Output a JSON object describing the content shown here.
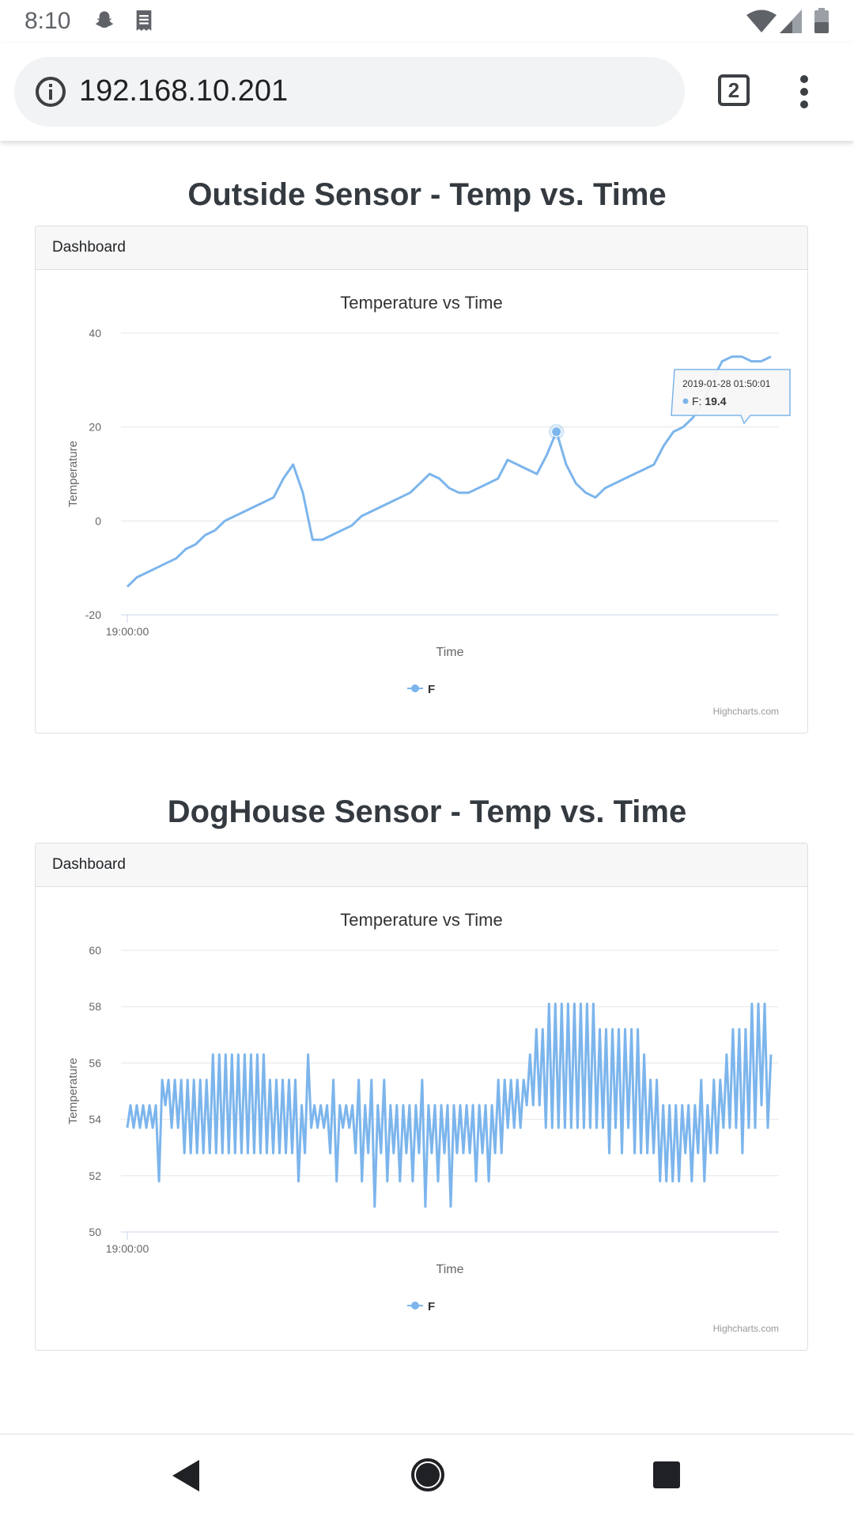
{
  "status_bar": {
    "time": "8:10",
    "icons": [
      "snapchat-icon",
      "receipt-icon",
      "wifi-icon",
      "cell-signal-icon",
      "battery-icon"
    ]
  },
  "browser": {
    "url": "192.168.10.201",
    "tab_count": "2"
  },
  "sections": [
    {
      "title": "Outside Sensor - Temp vs. Time",
      "card_header": "Dashboard"
    },
    {
      "title": "DogHouse Sensor - Temp vs. Time",
      "card_header": "Dashboard"
    }
  ],
  "chart_data": [
    {
      "type": "line",
      "title": "Temperature vs Time",
      "xlabel": "Time",
      "ylabel": "Temperature",
      "x_tick_labels": [
        "19:00:00"
      ],
      "ylim": [
        -20,
        40
      ],
      "y_ticks": [
        -20,
        0,
        20,
        40
      ],
      "grid": true,
      "legend": "bottom-center",
      "credits": "Highcharts.com",
      "color": "#7cb5ec",
      "tooltip": {
        "header": "2019-01-28 01:50:01",
        "series_label": "F: ",
        "value": "19.4",
        "point_index": 44
      },
      "series": [
        {
          "name": "F",
          "values": [
            -14,
            -12,
            -11,
            -10,
            -9,
            -8,
            -6,
            -5,
            -3,
            -2,
            0,
            1,
            2,
            3,
            4,
            5,
            9,
            12,
            6,
            -4,
            -4,
            -3,
            -2,
            -1,
            1,
            2,
            3,
            4,
            5,
            6,
            8,
            10,
            9,
            7,
            6,
            6,
            7,
            8,
            9,
            13,
            12,
            11,
            10,
            14,
            19,
            12,
            8,
            6,
            5,
            7,
            8,
            9,
            10,
            11,
            12,
            16,
            19,
            20,
            22,
            25,
            30,
            34,
            35,
            35,
            34,
            34,
            35
          ]
        }
      ]
    },
    {
      "type": "line",
      "title": "Temperature vs Time",
      "xlabel": "Time",
      "ylabel": "Temperature",
      "x_tick_labels": [
        "19:00:00"
      ],
      "ylim": [
        50,
        60
      ],
      "y_ticks": [
        50,
        52,
        54,
        56,
        58,
        60
      ],
      "grid": true,
      "legend": "bottom-center",
      "credits": "Highcharts.com",
      "color": "#7cb5ec",
      "series": [
        {
          "name": "F",
          "values": [
            53.7,
            54.5,
            53.7,
            54.5,
            53.7,
            54.5,
            53.7,
            54.5,
            53.7,
            54.5,
            51.8,
            55.4,
            54.5,
            55.4,
            53.7,
            55.4,
            53.7,
            55.4,
            52.8,
            55.4,
            52.8,
            55.4,
            52.8,
            55.4,
            52.8,
            55.4,
            52.8,
            56.3,
            52.8,
            56.3,
            52.8,
            56.3,
            52.8,
            56.3,
            52.8,
            56.3,
            52.8,
            56.3,
            52.8,
            56.3,
            52.8,
            56.3,
            52.8,
            56.3,
            52.8,
            55.4,
            52.8,
            55.4,
            52.8,
            55.4,
            52.8,
            55.4,
            52.8,
            55.4,
            51.8,
            54.5,
            52.8,
            56.3,
            53.7,
            54.5,
            53.7,
            54.5,
            53.7,
            54.5,
            52.8,
            55.4,
            51.8,
            54.5,
            53.7,
            54.5,
            53.7,
            54.5,
            52.8,
            55.4,
            51.8,
            54.5,
            52.8,
            55.4,
            50.9,
            54.5,
            52.8,
            55.4,
            51.8,
            54.5,
            52.8,
            54.5,
            51.8,
            54.5,
            52.8,
            54.5,
            51.8,
            54.5,
            52.8,
            55.4,
            50.9,
            54.5,
            52.8,
            54.5,
            51.8,
            54.5,
            52.8,
            54.5,
            50.9,
            54.5,
            52.8,
            54.5,
            52.8,
            54.5,
            52.8,
            54.5,
            51.8,
            54.5,
            52.8,
            54.5,
            51.8,
            54.5,
            52.8,
            55.4,
            52.8,
            55.4,
            53.7,
            55.4,
            53.7,
            55.4,
            53.7,
            55.4,
            54.5,
            56.3,
            54.5,
            57.2,
            54.5,
            57.2,
            53.7,
            58.1,
            53.7,
            58.1,
            53.7,
            58.1,
            53.7,
            58.1,
            53.7,
            58.1,
            53.7,
            58.1,
            53.7,
            58.1,
            53.7,
            58.1,
            53.7,
            57.2,
            53.7,
            57.2,
            52.8,
            57.2,
            53.7,
            57.2,
            52.8,
            57.2,
            53.7,
            57.2,
            52.8,
            57.2,
            52.8,
            56.3,
            52.8,
            55.4,
            52.8,
            55.4,
            51.8,
            54.5,
            51.8,
            54.5,
            51.8,
            54.5,
            51.8,
            54.5,
            52.8,
            54.5,
            51.8,
            54.5,
            52.8,
            55.4,
            51.8,
            54.5,
            52.8,
            55.4,
            52.8,
            55.4,
            53.7,
            56.3,
            53.7,
            57.2,
            53.7,
            57.2,
            52.8,
            57.2,
            53.7,
            58.1,
            53.7,
            58.1,
            54.5,
            58.1,
            53.7,
            56.3
          ]
        }
      ]
    }
  ],
  "nav_bar": {
    "icons": [
      "back-icon",
      "home-icon",
      "recents-icon"
    ]
  }
}
